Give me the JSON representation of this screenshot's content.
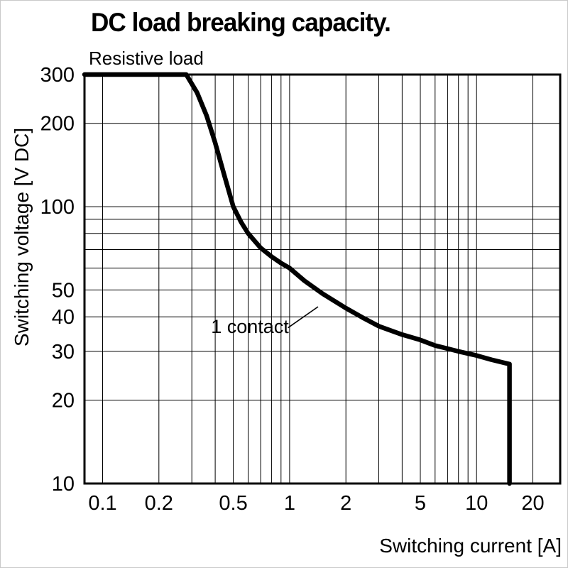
{
  "page": {
    "title": "DC load breaking capacity.",
    "subtitle": "Resistive load"
  },
  "chart_data": {
    "type": "line",
    "title": "DC load breaking capacity",
    "subtitle": "Resistive load",
    "xlabel": "Switching current [A]",
    "ylabel": "Switching voltage [V DC]",
    "x_scale": "log",
    "y_scale": "log",
    "xlim": [
      0.08,
      28
    ],
    "ylim": [
      10,
      300
    ],
    "grid": "on",
    "x_ticks": [
      {
        "v": 0.1,
        "label": "0.1"
      },
      {
        "v": 0.2,
        "label": "0.2"
      },
      {
        "v": 0.5,
        "label": "0.5"
      },
      {
        "v": 1,
        "label": "1"
      },
      {
        "v": 2,
        "label": "2"
      },
      {
        "v": 5,
        "label": "5"
      },
      {
        "v": 10,
        "label": "10"
      },
      {
        "v": 20,
        "label": "20"
      }
    ],
    "y_ticks": [
      {
        "v": 10,
        "label": "10"
      },
      {
        "v": 20,
        "label": "20"
      },
      {
        "v": 30,
        "label": "30"
      },
      {
        "v": 40,
        "label": "40"
      },
      {
        "v": 50,
        "label": "50"
      },
      {
        "v": 100,
        "label": "100"
      },
      {
        "v": 200,
        "label": "200"
      },
      {
        "v": 300,
        "label": "300"
      }
    ],
    "x_grid": [
      0.1,
      0.2,
      0.3,
      0.4,
      0.5,
      0.6,
      0.7,
      0.8,
      0.9,
      1,
      2,
      3,
      4,
      5,
      6,
      7,
      8,
      9,
      10,
      20
    ],
    "y_grid": [
      20,
      30,
      40,
      50,
      60,
      70,
      80,
      90,
      100,
      200,
      300
    ],
    "series": [
      {
        "name": "1 contact",
        "points": [
          [
            0.08,
            300
          ],
          [
            0.28,
            300
          ],
          [
            0.32,
            258
          ],
          [
            0.36,
            213
          ],
          [
            0.4,
            170
          ],
          [
            0.45,
            128
          ],
          [
            0.5,
            100
          ],
          [
            0.55,
            88
          ],
          [
            0.6,
            80
          ],
          [
            0.7,
            71
          ],
          [
            0.8,
            66
          ],
          [
            0.9,
            62.5
          ],
          [
            1.0,
            60
          ],
          [
            1.2,
            54
          ],
          [
            1.5,
            48.5
          ],
          [
            2.0,
            43
          ],
          [
            2.5,
            39.5
          ],
          [
            3.0,
            37
          ],
          [
            4.0,
            34.5
          ],
          [
            5.0,
            33
          ],
          [
            6.0,
            31.5
          ],
          [
            7.0,
            30.7
          ],
          [
            8.0,
            30
          ],
          [
            10,
            29
          ],
          [
            12,
            28
          ],
          [
            15,
            27
          ],
          [
            15,
            10
          ]
        ]
      }
    ],
    "annotation": {
      "text": "1 contact",
      "text_at": [
        0.38,
        35
      ],
      "leader_from": [
        0.98,
        36.5
      ],
      "leader_to": [
        1.42,
        43.5
      ]
    }
  }
}
